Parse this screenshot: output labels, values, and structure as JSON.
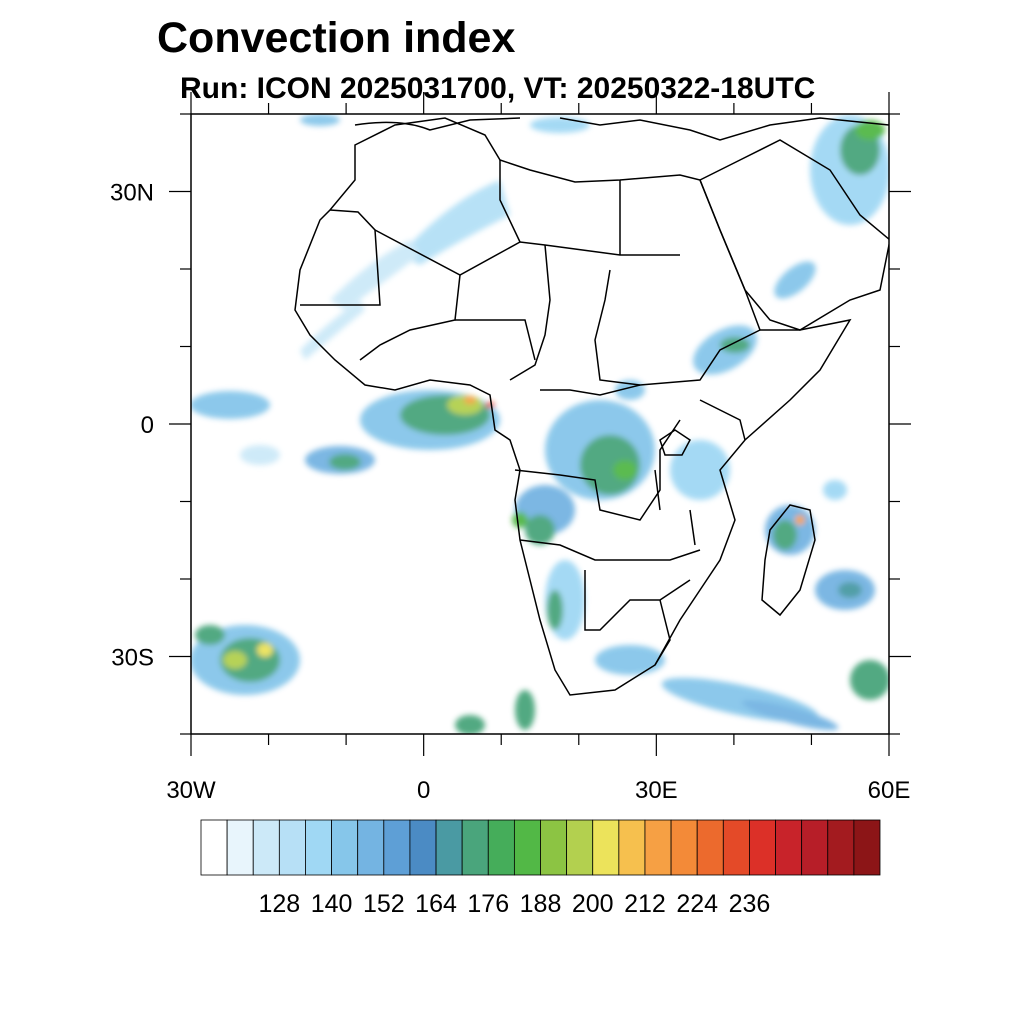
{
  "title": "Convection index",
  "subtitle": "Run: ICON 2025031700,  VT: 20250322-18UTC",
  "map": {
    "region": "Africa",
    "lon_range": [
      -30,
      60
    ],
    "lat_range": [
      -40,
      40
    ],
    "lon_ticks": [
      {
        "value": -30,
        "label": "30W"
      },
      {
        "value": 0,
        "label": "0"
      },
      {
        "value": 30,
        "label": "30E"
      },
      {
        "value": 60,
        "label": "60E"
      }
    ],
    "lat_ticks": [
      {
        "value": 30,
        "label": "30N"
      },
      {
        "value": 0,
        "label": "0"
      },
      {
        "value": -30,
        "label": "30S"
      }
    ]
  },
  "colorbar": {
    "colors": [
      "#ffffff",
      "#e8f5fc",
      "#cce9f8",
      "#b7e0f6",
      "#a0d8f4",
      "#86c6ea",
      "#74b4e2",
      "#5e9fd6",
      "#4b8bc4",
      "#4a9aa3",
      "#4aa57c",
      "#45ad5a",
      "#52b846",
      "#8cc443",
      "#b3d04f",
      "#ece35b",
      "#f6c04e",
      "#f6a044",
      "#f38a38",
      "#ec6a2d",
      "#e44a28",
      "#dc3028",
      "#c8232a",
      "#b71e28",
      "#a31b1f",
      "#8c1517"
    ],
    "tick_labels": [
      "128",
      "140",
      "152",
      "164",
      "176",
      "188",
      "200",
      "212",
      "224",
      "236"
    ]
  }
}
